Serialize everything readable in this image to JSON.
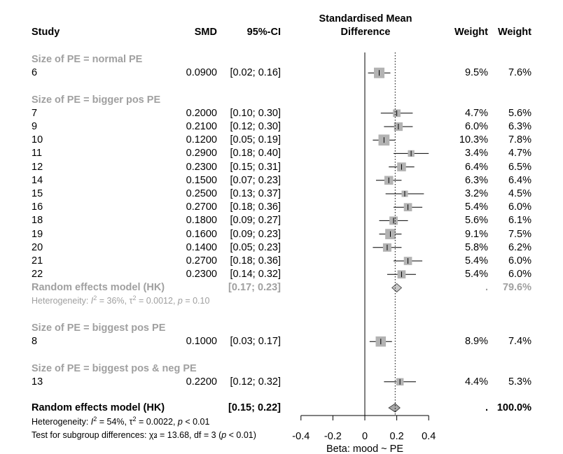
{
  "header": {
    "study": "Study",
    "smd": "SMD",
    "ci": "95%-CI",
    "plot_title_line1": "Standardised Mean",
    "plot_title_line2": "Difference",
    "weight_common": "Weight",
    "weight_random": "Weight"
  },
  "chart_data": {
    "type": "forest",
    "xlabel": "Beta: mood ~ PE",
    "xlim": [
      -0.4,
      0.4
    ],
    "xticks": [
      "-0.4",
      "-0.2",
      "0",
      "0.2",
      "0.4"
    ],
    "reference_line": 0,
    "overall_dotted_line": 0.19,
    "groups": [
      {
        "label": "Size of PE = normal PE",
        "studies": [
          {
            "study": "6",
            "smd": 0.09,
            "smd_text": "0.0900",
            "lower": 0.02,
            "upper": 0.16,
            "ci_text": "[0.02; 0.16]",
            "w_common": "9.5%",
            "w_random": "7.6%",
            "box": 1.0
          }
        ]
      },
      {
        "label": "Size of PE = bigger pos PE",
        "studies": [
          {
            "study": "7",
            "smd": 0.2,
            "smd_text": "0.2000",
            "lower": 0.1,
            "upper": 0.3,
            "ci_text": "[0.10; 0.30]",
            "w_common": "4.7%",
            "w_random": "5.6%",
            "box": 0.72
          },
          {
            "study": "9",
            "smd": 0.21,
            "smd_text": "0.2100",
            "lower": 0.12,
            "upper": 0.3,
            "ci_text": "[0.12; 0.30]",
            "w_common": "6.0%",
            "w_random": "6.3%",
            "box": 0.82
          },
          {
            "study": "10",
            "smd": 0.12,
            "smd_text": "0.1200",
            "lower": 0.05,
            "upper": 0.19,
            "ci_text": "[0.05; 0.19]",
            "w_common": "10.3%",
            "w_random": "7.8%",
            "box": 1.05
          },
          {
            "study": "11",
            "smd": 0.29,
            "smd_text": "0.2900",
            "lower": 0.18,
            "upper": 0.4,
            "ci_text": "[0.18; 0.40]",
            "w_common": "3.4%",
            "w_random": "4.7%",
            "box": 0.62
          },
          {
            "study": "12",
            "smd": 0.23,
            "smd_text": "0.2300",
            "lower": 0.15,
            "upper": 0.31,
            "ci_text": "[0.15; 0.31]",
            "w_common": "6.4%",
            "w_random": "6.5%",
            "box": 0.84
          },
          {
            "study": "14",
            "smd": 0.15,
            "smd_text": "0.1500",
            "lower": 0.07,
            "upper": 0.23,
            "ci_text": "[0.07; 0.23]",
            "w_common": "6.3%",
            "w_random": "6.4%",
            "box": 0.84
          },
          {
            "study": "15",
            "smd": 0.25,
            "smd_text": "0.2500",
            "lower": 0.13,
            "upper": 0.37,
            "ci_text": "[0.13; 0.37]",
            "w_common": "3.2%",
            "w_random": "4.5%",
            "box": 0.6
          },
          {
            "study": "16",
            "smd": 0.27,
            "smd_text": "0.2700",
            "lower": 0.18,
            "upper": 0.36,
            "ci_text": "[0.18; 0.36]",
            "w_common": "5.4%",
            "w_random": "6.0%",
            "box": 0.78
          },
          {
            "study": "18",
            "smd": 0.18,
            "smd_text": "0.1800",
            "lower": 0.09,
            "upper": 0.27,
            "ci_text": "[0.09; 0.27]",
            "w_common": "5.6%",
            "w_random": "6.1%",
            "box": 0.79
          },
          {
            "study": "19",
            "smd": 0.16,
            "smd_text": "0.1600",
            "lower": 0.09,
            "upper": 0.23,
            "ci_text": "[0.09; 0.23]",
            "w_common": "9.1%",
            "w_random": "7.5%",
            "box": 0.98
          },
          {
            "study": "20",
            "smd": 0.14,
            "smd_text": "0.1400",
            "lower": 0.05,
            "upper": 0.23,
            "ci_text": "[0.05; 0.23]",
            "w_common": "5.8%",
            "w_random": "6.2%",
            "box": 0.8
          },
          {
            "study": "21",
            "smd": 0.27,
            "smd_text": "0.2700",
            "lower": 0.18,
            "upper": 0.36,
            "ci_text": "[0.18; 0.36]",
            "w_common": "5.4%",
            "w_random": "6.0%",
            "box": 0.78
          },
          {
            "study": "22",
            "smd": 0.23,
            "smd_text": "0.2300",
            "lower": 0.14,
            "upper": 0.32,
            "ci_text": "[0.14; 0.32]",
            "w_common": "5.4%",
            "w_random": "6.0%",
            "box": 0.78
          }
        ],
        "summary": {
          "label": "Random effects model (HK)",
          "ci_text": "[0.17; 0.23]",
          "est": 0.2,
          "lower": 0.17,
          "upper": 0.23,
          "w_common": ".",
          "w_random": "79.6%"
        },
        "heterogeneity": {
          "prefix": "Heterogeneity: ",
          "i2_sym": "I",
          "i2_text": " = 36%, ",
          "tau_sym": "τ",
          "tau_text": " = 0.0012, ",
          "p_sym": "p",
          "p_text": " = 0.10"
        }
      },
      {
        "label": "Size of PE = biggest pos PE",
        "studies": [
          {
            "study": "8",
            "smd": 0.1,
            "smd_text": "0.1000",
            "lower": 0.03,
            "upper": 0.17,
            "ci_text": "[0.03; 0.17]",
            "w_common": "8.9%",
            "w_random": "7.4%",
            "box": 0.97
          }
        ]
      },
      {
        "label": "Size of PE = biggest pos & neg PE",
        "studies": [
          {
            "study": "13",
            "smd": 0.22,
            "smd_text": "0.2200",
            "lower": 0.12,
            "upper": 0.32,
            "ci_text": "[0.12; 0.32]",
            "w_common": "4.4%",
            "w_random": "5.3%",
            "box": 0.7
          }
        ]
      }
    ],
    "overall": {
      "label": "Random effects model (HK)",
      "ci_text": "[0.15; 0.22]",
      "est": 0.19,
      "lower": 0.15,
      "upper": 0.22,
      "w_common": ".",
      "w_random": "100.0%"
    },
    "overall_heterogeneity": {
      "prefix": "Heterogeneity: ",
      "i2_sym": "I",
      "i2_text": " = 54%, ",
      "tau_sym": "τ",
      "tau_text": " = 0.0022, ",
      "p_sym": "p",
      "p_text": " < 0.01"
    },
    "subgroup_test": {
      "prefix": "Test for subgroup differences: ",
      "chi_sym": "χ",
      "chi_sub": "3",
      "chi_text": " = 13.68, df = 3 (",
      "p_sym": "p",
      "p_text": " < 0.01)"
    }
  },
  "colors": {
    "box": "#b3b3b3",
    "grey_text": "#a0a0a0",
    "diamond_group": "#c8c8c8",
    "diamond_overall": "#a8a8a8"
  }
}
